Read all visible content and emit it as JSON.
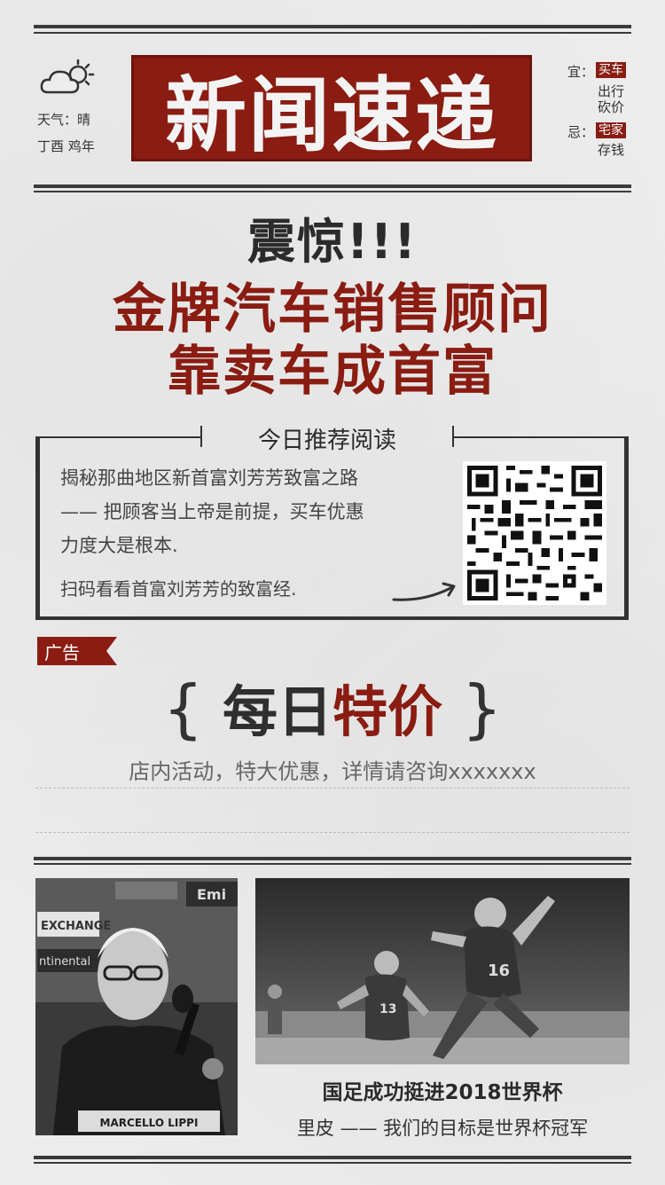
{
  "header": {
    "weather_label": "天气：晴",
    "lunar_label": "丁酉    鸡年",
    "masthead": "新闻速递",
    "almanac": {
      "yi_key": "宜：",
      "yi_tag": "买车",
      "yi_sub1": "出行",
      "yi_sub2": "砍价",
      "ji_key": "忌：",
      "ji_tag": "宅家",
      "ji_sub1": "存钱"
    }
  },
  "headline": {
    "line1": "震惊!!!",
    "line2": "金牌汽车销售顾问",
    "line3": "靠卖车成首富"
  },
  "recommend": {
    "title": "今日推荐阅读",
    "body_line1": "揭秘那曲地区新首富刘芳芳致富之路",
    "body_line2": "——  把顾客当上帝是前提，买车优惠",
    "body_line3": "力度大是根本.",
    "scan_text": "扫码看看首富刘芳芳的致富经."
  },
  "ad": {
    "tag": "广告",
    "brace_left": "{",
    "daily_a": "每日",
    "daily_b": "特价",
    "brace_right": "}",
    "desc": "店内活动，特大优惠，详情请咨询xxxxxxx"
  },
  "news": {
    "photo1_sign_1": "EXCHANGE",
    "photo1_sign_2": "ntinental",
    "photo1_sign_3": "Emi",
    "photo1_plate": "MARCELLO LIPPI",
    "photo2_number": "16",
    "photo2_number2": "13",
    "title": "国足成功挺进2018世界杯",
    "quote": "里皮 —— 我们的目标是世界杯冠军"
  },
  "colors": {
    "accent_red": "#8a1c12",
    "ink": "#2a2a2a",
    "paper": "#ececec"
  },
  "icons": [
    "weather-cloud-sun-icon",
    "arrow-icon",
    "qr-code"
  ]
}
